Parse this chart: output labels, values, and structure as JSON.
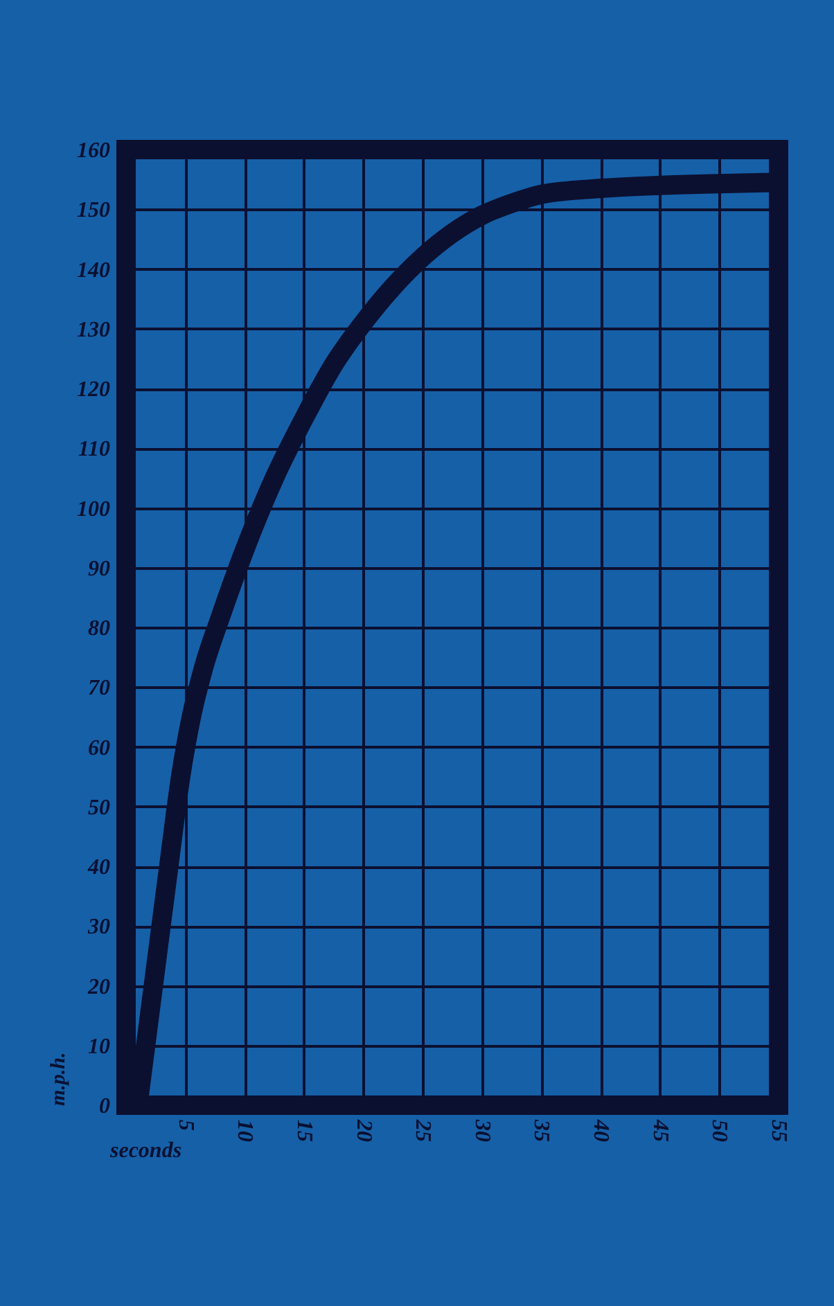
{
  "chart_data": {
    "type": "line",
    "xlabel": "seconds",
    "ylabel": "m.p.h.",
    "x": [
      1,
      2.3,
      3.6,
      4.6,
      5.5,
      6.5,
      8,
      10,
      12.5,
      15,
      17.5,
      20,
      22.5,
      25,
      27.5,
      30,
      32.5,
      35,
      40,
      45,
      50,
      55
    ],
    "series": [
      {
        "color": "#0b1030",
        "values": [
          0,
          20,
          40,
          55,
          65,
          73,
          82,
          93,
          105,
          115,
          124,
          131,
          137,
          142,
          146,
          149,
          151,
          152.5,
          153.5,
          154,
          154.3,
          154.5
        ]
      }
    ],
    "xlim": [
      0,
      55
    ],
    "ylim": [
      0,
      160
    ],
    "xticks": [
      {
        "value": 0,
        "label": null
      },
      5,
      10,
      15,
      20,
      25,
      30,
      35,
      40,
      45,
      50,
      55
    ],
    "yticks": [
      0,
      10,
      20,
      30,
      40,
      50,
      60,
      70,
      80,
      90,
      100,
      110,
      120,
      130,
      140,
      150,
      160
    ],
    "grid": true,
    "line_style": "solid"
  }
}
